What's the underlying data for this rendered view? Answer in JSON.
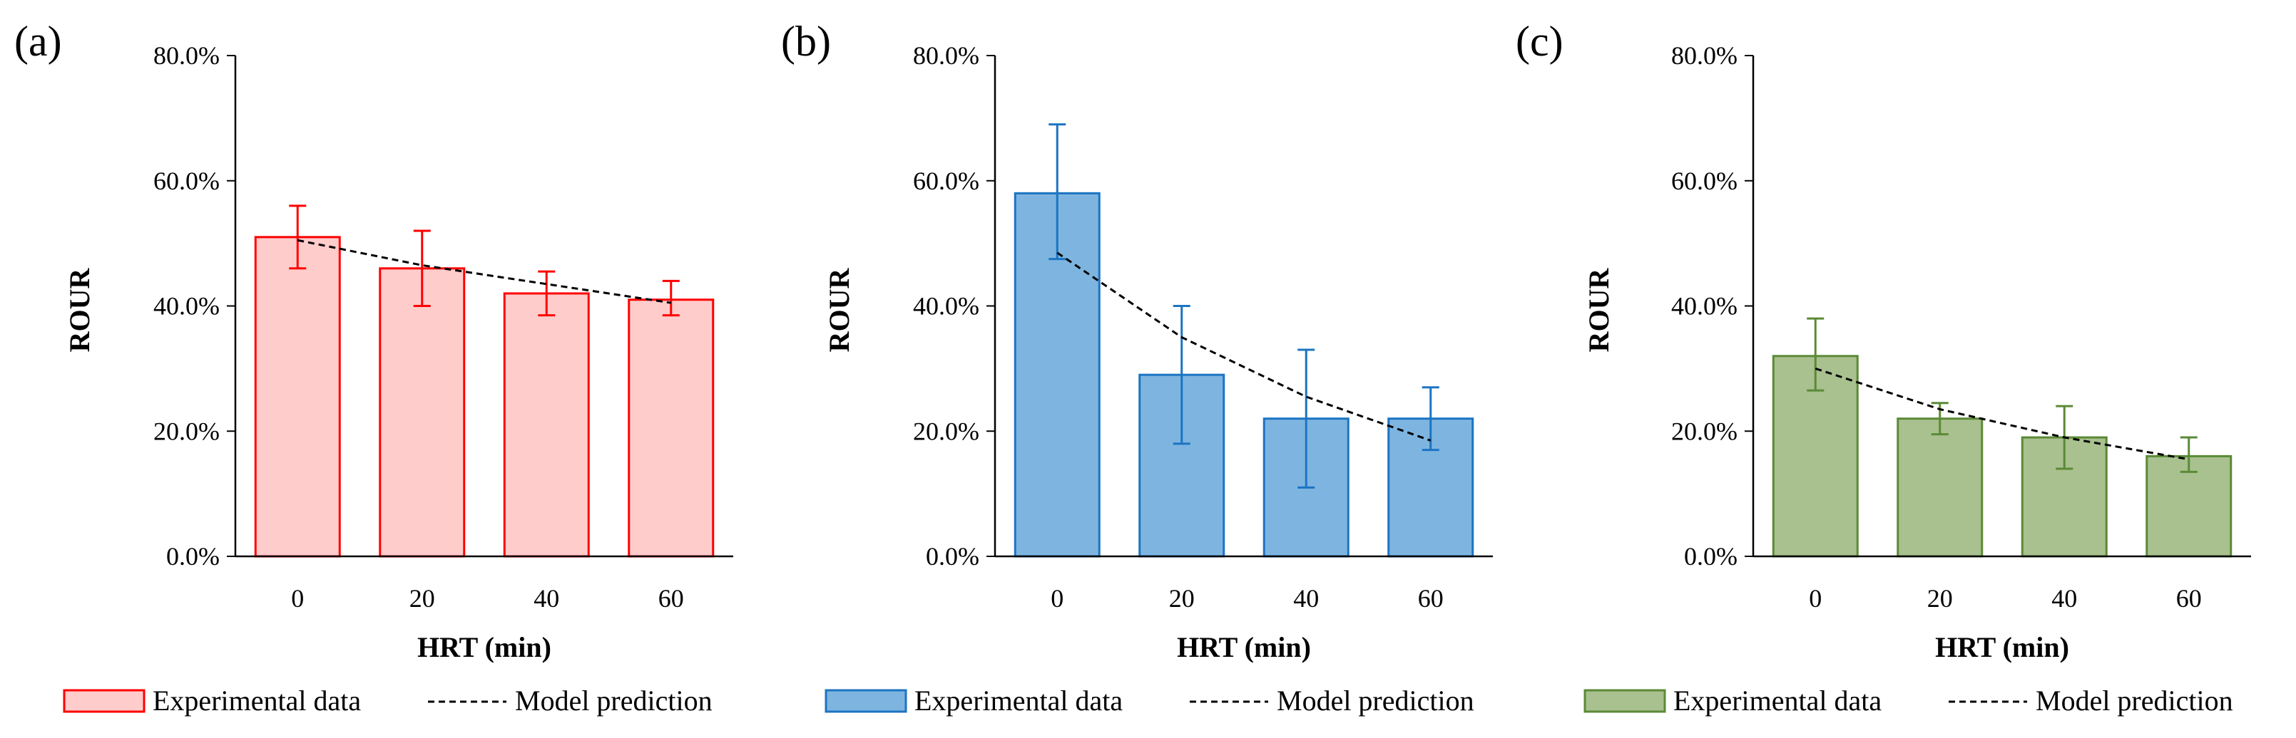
{
  "chart_data": [
    {
      "panel_label": "(a)",
      "type": "bar",
      "categories": [
        "0",
        "20",
        "40",
        "60"
      ],
      "values": [
        51.0,
        46.0,
        42.0,
        41.0
      ],
      "error_low": [
        46.0,
        40.0,
        38.5,
        38.5
      ],
      "error_high": [
        56.0,
        52.0,
        45.5,
        44.0
      ],
      "model_prediction": [
        50.5,
        46.5,
        43.5,
        40.5
      ],
      "xlabel": "HRT (min)",
      "ylabel": "ROUR",
      "ylim": [
        0,
        80
      ],
      "yticks": [
        "0.0%",
        "20.0%",
        "40.0%",
        "60.0%",
        "80.0%"
      ],
      "grid": false,
      "bar_fill": "#FFCCCC",
      "bar_stroke": "#FF0000",
      "legend_position": "bottom",
      "legend": [
        "Experimental data",
        "Model prediction"
      ]
    },
    {
      "panel_label": "(b)",
      "type": "bar",
      "categories": [
        "0",
        "20",
        "40",
        "60"
      ],
      "values": [
        58.0,
        29.0,
        22.0,
        22.0
      ],
      "error_low": [
        47.5,
        18.0,
        11.0,
        17.0
      ],
      "error_high": [
        69.0,
        40.0,
        33.0,
        27.0
      ],
      "model_prediction": [
        48.5,
        35.0,
        25.5,
        18.5
      ],
      "xlabel": "HRT (min)",
      "ylabel": "ROUR",
      "ylim": [
        0,
        80
      ],
      "yticks": [
        "0.0%",
        "20.0%",
        "40.0%",
        "60.0%",
        "80.0%"
      ],
      "grid": false,
      "bar_fill": "#7EB5E0",
      "bar_stroke": "#1C74C2",
      "legend_position": "bottom",
      "legend": [
        "Experimental data",
        "Model prediction"
      ]
    },
    {
      "panel_label": "(c)",
      "type": "bar",
      "categories": [
        "0",
        "20",
        "40",
        "60"
      ],
      "values": [
        32.0,
        22.0,
        19.0,
        16.0
      ],
      "error_low": [
        26.5,
        19.5,
        14.0,
        13.5
      ],
      "error_high": [
        38.0,
        24.5,
        24.0,
        19.0
      ],
      "model_prediction": [
        30.0,
        23.5,
        19.0,
        15.5
      ],
      "xlabel": "HRT (min)",
      "ylabel": "ROUR",
      "ylim": [
        0,
        80
      ],
      "yticks": [
        "0.0%",
        "20.0%",
        "40.0%",
        "60.0%",
        "80.0%"
      ],
      "grid": false,
      "bar_fill": "#A9C08F",
      "bar_stroke": "#5B8A36",
      "legend_position": "bottom",
      "legend": [
        "Experimental data",
        "Model prediction"
      ]
    }
  ]
}
